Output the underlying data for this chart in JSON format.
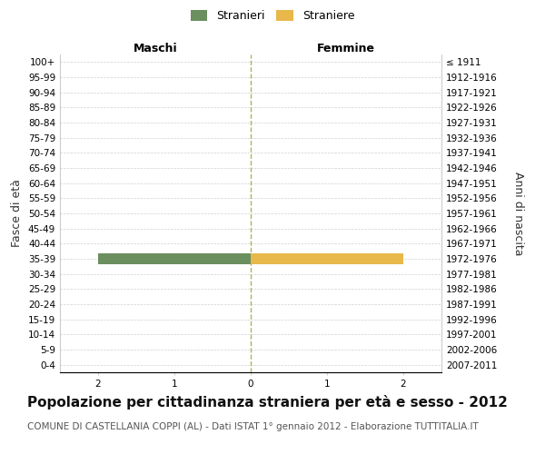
{
  "age_groups": [
    "100+",
    "95-99",
    "90-94",
    "85-89",
    "80-84",
    "75-79",
    "70-74",
    "65-69",
    "60-64",
    "55-59",
    "50-54",
    "45-49",
    "40-44",
    "35-39",
    "30-34",
    "25-29",
    "20-24",
    "15-19",
    "10-14",
    "5-9",
    "0-4"
  ],
  "birth_years": [
    "≤ 1911",
    "1912-1916",
    "1917-1921",
    "1922-1926",
    "1927-1931",
    "1932-1936",
    "1937-1941",
    "1942-1946",
    "1947-1951",
    "1952-1956",
    "1957-1961",
    "1962-1966",
    "1967-1971",
    "1972-1976",
    "1977-1981",
    "1982-1986",
    "1987-1991",
    "1992-1996",
    "1997-2001",
    "2002-2006",
    "2007-2011"
  ],
  "maschi": [
    0,
    0,
    0,
    0,
    0,
    0,
    0,
    0,
    0,
    0,
    0,
    0,
    0,
    2,
    0,
    0,
    0,
    0,
    0,
    0,
    0
  ],
  "femmine": [
    0,
    0,
    0,
    0,
    0,
    0,
    0,
    0,
    0,
    0,
    0,
    0,
    0,
    2,
    0,
    0,
    0,
    0,
    0,
    0,
    0
  ],
  "color_maschi": "#6b8f5e",
  "color_femmine": "#e8b84b",
  "title": "Popolazione per cittadinanza straniera per età e sesso - 2012",
  "subtitle": "COMUNE DI CASTELLANIA COPPI (AL) - Dati ISTAT 1° gennaio 2012 - Elaborazione TUTTITALIA.IT",
  "ylabel_left": "Fasce di età",
  "ylabel_right": "Anni di nascita",
  "xlabel_left": "Maschi",
  "xlabel_right": "Femmine",
  "legend_maschi": "Stranieri",
  "legend_femmine": "Straniere",
  "xlim": 2.5,
  "bg_color": "#ffffff",
  "grid_color": "#cccccc",
  "bar_height": 0.75,
  "center_line_color": "#b0b060",
  "title_fontsize": 11,
  "subtitle_fontsize": 7.5,
  "tick_fontsize": 7.5,
  "label_fontsize": 9
}
